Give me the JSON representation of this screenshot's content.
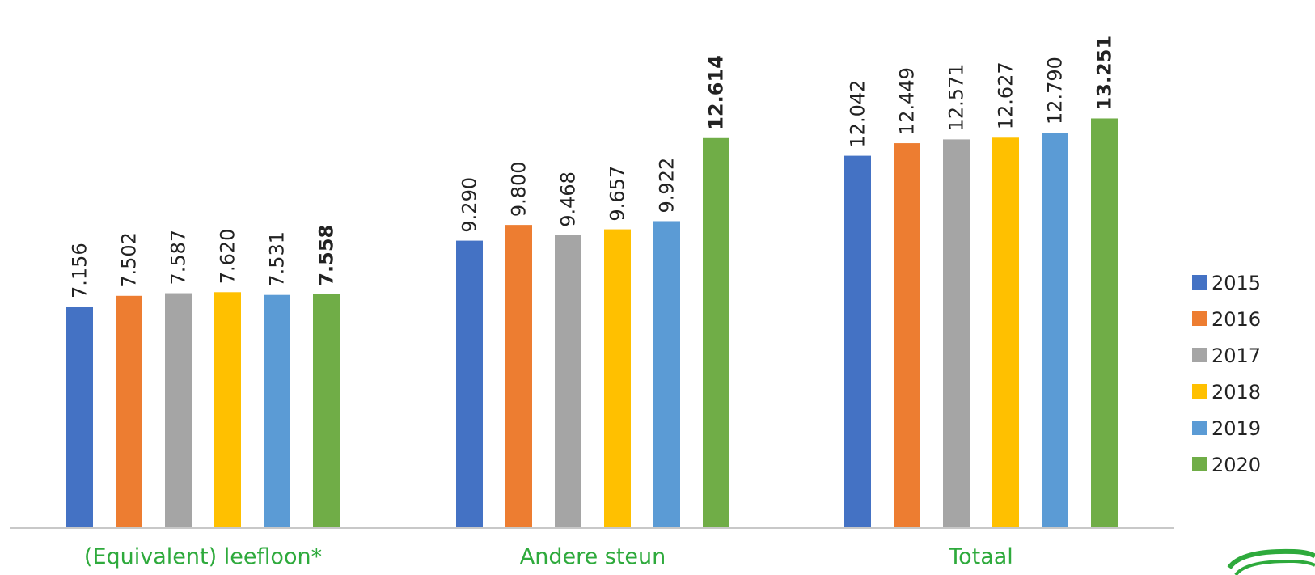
{
  "chart_data": {
    "type": "bar",
    "categories": [
      "(Equivalent) leefloon*",
      "Andere steun",
      "Totaal"
    ],
    "series": [
      {
        "name": "2015",
        "color": "#4472c4",
        "values": [
          7156,
          9290,
          12042
        ],
        "labels": [
          "7.156",
          "9.290",
          "12.042"
        ]
      },
      {
        "name": "2016",
        "color": "#ed7d31",
        "values": [
          7502,
          9800,
          12449
        ],
        "labels": [
          "7.502",
          "9.800",
          "12.449"
        ]
      },
      {
        "name": "2017",
        "color": "#a5a5a5",
        "values": [
          7587,
          9468,
          12571
        ],
        "labels": [
          "7.587",
          "9.468",
          "12.571"
        ]
      },
      {
        "name": "2018",
        "color": "#ffc000",
        "values": [
          7620,
          9657,
          12627
        ],
        "labels": [
          "7.620",
          "9.657",
          "12.627"
        ]
      },
      {
        "name": "2019",
        "color": "#5b9bd5",
        "values": [
          7531,
          9922,
          12790
        ],
        "labels": [
          "7.531",
          "9.922",
          "12.790"
        ]
      },
      {
        "name": "2020",
        "color": "#70ad47",
        "values": [
          7558,
          12614,
          13251
        ],
        "labels": [
          "7.558",
          "12.614",
          "13.251"
        ],
        "bold_labels": true
      }
    ],
    "ylim": [
      0,
      15000
    ],
    "grid": false,
    "legend": "right",
    "category_label_color": "#2eaa3c",
    "axis_color": "#c8c8c8"
  }
}
